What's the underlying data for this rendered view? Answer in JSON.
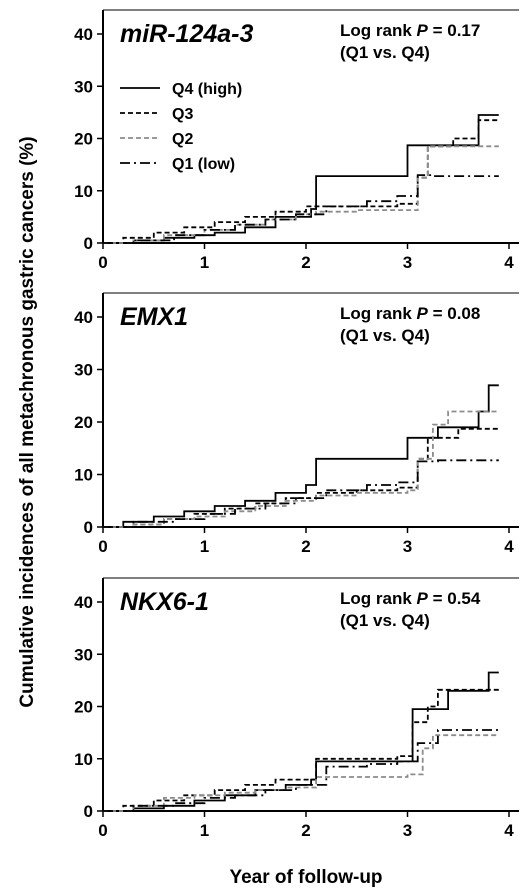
{
  "ylabel": "Cumulative incidences of all metachronous gastric cancers (%)",
  "xlabel": "Year of follow-up",
  "legend": [
    {
      "label": "Q4 (high)",
      "style": "solid",
      "color": "#000000"
    },
    {
      "label": "Q3",
      "style": "dash",
      "color": "#000000"
    },
    {
      "label": "Q2",
      "style": "dash",
      "color": "#8c8c8c"
    },
    {
      "label": "Q1 (low)",
      "style": "dashdot",
      "color": "#000000"
    }
  ],
  "chart_data": [
    {
      "type": "line",
      "title": "miR-124a-3",
      "annotation_prefix": "Log rank ",
      "annotation_p": "P",
      "annotation_value": " = 0.17",
      "annotation_line2": "(Q1 vs. Q4)",
      "xlim": [
        0,
        4
      ],
      "ylim": [
        0,
        40
      ],
      "xticks": [
        "0",
        "1",
        "2",
        "3",
        "4"
      ],
      "yticks": [
        "0",
        "10",
        "20",
        "30",
        "40"
      ],
      "series": [
        {
          "name": "Q4 (high)",
          "x": [
            0,
            0.3,
            0.6,
            0.9,
            1.1,
            1.4,
            1.7,
            2.05,
            2.1,
            2.95,
            3.0,
            3.65,
            3.7,
            3.9
          ],
          "y": [
            0,
            0.5,
            1,
            1.5,
            2,
            3,
            5,
            6.5,
            12.8,
            12.8,
            18.7,
            18.7,
            24.5,
            24.5
          ]
        },
        {
          "name": "Q3",
          "x": [
            0,
            0.2,
            0.5,
            0.8,
            1.1,
            1.4,
            1.7,
            2.0,
            2.4,
            2.9,
            3.1,
            3.2,
            3.45,
            3.7,
            3.9
          ],
          "y": [
            0,
            1,
            2,
            3,
            4,
            5,
            6,
            7,
            7,
            7.5,
            12.5,
            18.5,
            20,
            23.5,
            23.5
          ]
        },
        {
          "name": "Q2",
          "x": [
            0,
            0.3,
            0.6,
            1.0,
            1.3,
            1.6,
            1.9,
            2.1,
            2.5,
            3.0,
            3.1,
            3.2,
            3.75,
            3.9
          ],
          "y": [
            0,
            0.5,
            1.5,
            2.5,
            3.5,
            4.5,
            5.5,
            6,
            6.3,
            6.3,
            12.5,
            18.5,
            18.5,
            18.5
          ]
        },
        {
          "name": "Q1 (low)",
          "x": [
            0,
            0.3,
            0.7,
            1.0,
            1.3,
            1.6,
            1.9,
            2.2,
            2.6,
            2.9,
            3.1,
            3.25,
            3.9
          ],
          "y": [
            0,
            0.5,
            1.5,
            2.5,
            3.5,
            4.5,
            5.5,
            7,
            8,
            9,
            13,
            12.8,
            12.8
          ]
        }
      ]
    },
    {
      "type": "line",
      "title": "EMX1",
      "annotation_prefix": "Log rank ",
      "annotation_p": "P",
      "annotation_value": " = 0.08",
      "annotation_line2": "(Q1 vs. Q4)",
      "xlim": [
        0,
        4
      ],
      "ylim": [
        0,
        40
      ],
      "xticks": [
        "0",
        "1",
        "2",
        "3",
        "4"
      ],
      "yticks": [
        "0",
        "10",
        "20",
        "30",
        "40"
      ],
      "series": [
        {
          "name": "Q4 (high)",
          "x": [
            0,
            0.2,
            0.5,
            0.8,
            1.1,
            1.4,
            1.7,
            2.0,
            2.1,
            2.95,
            3.0,
            3.3,
            3.7,
            3.8,
            3.9
          ],
          "y": [
            0,
            1,
            2,
            3,
            4,
            5,
            6.5,
            8,
            13,
            13,
            17,
            19,
            22,
            27,
            27
          ]
        },
        {
          "name": "Q3",
          "x": [
            0,
            0.3,
            0.6,
            0.9,
            1.2,
            1.5,
            1.8,
            2.1,
            2.5,
            2.9,
            3.1,
            3.2,
            3.5,
            3.9
          ],
          "y": [
            0,
            0.5,
            1.5,
            2.5,
            3.5,
            4.5,
            5.5,
            6.5,
            7,
            7.5,
            13,
            17,
            18.7,
            18.7
          ]
        },
        {
          "name": "Q2",
          "x": [
            0,
            0.3,
            0.6,
            0.9,
            1.2,
            1.5,
            1.8,
            2.1,
            2.5,
            3.0,
            3.1,
            3.25,
            3.4,
            3.9
          ],
          "y": [
            0,
            0.5,
            1.5,
            2,
            3,
            4,
            5,
            6,
            6.5,
            7,
            13,
            19.5,
            22,
            22
          ]
        },
        {
          "name": "Q1 (low)",
          "x": [
            0,
            0.3,
            0.7,
            1.0,
            1.3,
            1.6,
            1.9,
            2.2,
            2.6,
            2.9,
            3.1,
            3.3,
            3.9
          ],
          "y": [
            0,
            1,
            1.5,
            2.5,
            3.5,
            4.5,
            5.5,
            7,
            8,
            8.5,
            12.5,
            12.7,
            12.7
          ]
        }
      ]
    },
    {
      "type": "line",
      "title": "NKX6-1",
      "annotation_prefix": "Log rank ",
      "annotation_p": "P",
      "annotation_value": " = 0.54",
      "annotation_line2": "(Q1 vs. Q4)",
      "xlim": [
        0,
        4
      ],
      "ylim": [
        0,
        40
      ],
      "xticks": [
        "0",
        "1",
        "2",
        "3",
        "4"
      ],
      "yticks": [
        "0",
        "10",
        "20",
        "30",
        "40"
      ],
      "series": [
        {
          "name": "Q4 (high)",
          "x": [
            0,
            0.3,
            0.6,
            0.9,
            1.2,
            1.5,
            1.8,
            2.05,
            2.1,
            2.95,
            3.05,
            3.4,
            3.8,
            3.9
          ],
          "y": [
            0,
            0.5,
            1,
            2,
            3,
            4,
            5,
            6,
            9.5,
            9.5,
            19.5,
            23,
            26.5,
            26.5
          ]
        },
        {
          "name": "Q3",
          "x": [
            0,
            0.2,
            0.5,
            0.8,
            1.1,
            1.4,
            1.7,
            2.1,
            2.5,
            2.9,
            3.05,
            3.2,
            3.3,
            3.9
          ],
          "y": [
            0,
            1,
            2,
            3,
            4,
            5,
            6,
            10,
            10,
            10.5,
            17,
            20,
            23.2,
            23.2
          ]
        },
        {
          "name": "Q2",
          "x": [
            0,
            0.3,
            0.6,
            0.9,
            1.2,
            1.5,
            1.8,
            2.1,
            2.5,
            3.0,
            3.15,
            3.25,
            3.9
          ],
          "y": [
            0,
            1,
            2.5,
            3,
            3.5,
            4,
            4.5,
            6.5,
            6.5,
            7,
            12,
            14.5,
            14.5
          ]
        },
        {
          "name": "Q1 (low)",
          "x": [
            0,
            0.3,
            0.7,
            1.0,
            1.3,
            1.6,
            1.9,
            2.2,
            2.6,
            2.9,
            3.1,
            3.3,
            3.9
          ],
          "y": [
            0,
            1,
            1.5,
            2.5,
            3,
            4,
            5,
            8.5,
            9,
            9.5,
            13,
            15.5,
            15.5
          ]
        }
      ]
    }
  ]
}
